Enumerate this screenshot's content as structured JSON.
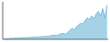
{
  "chart_data": {
    "type": "area",
    "x": [
      0,
      1,
      2,
      3,
      4,
      5,
      6,
      7,
      8,
      9,
      10,
      11,
      12,
      13,
      14,
      15,
      16,
      17,
      18,
      19,
      20,
      21,
      22,
      23,
      24,
      25,
      26,
      27,
      28,
      29,
      30,
      31,
      32,
      33,
      34,
      35,
      36,
      37,
      38,
      39,
      40,
      41,
      42,
      43,
      44,
      45,
      46,
      47
    ],
    "values": [
      5.0,
      5.5,
      5.2,
      5.8,
      5.4,
      6.0,
      5.7,
      6.2,
      5.9,
      6.5,
      6.1,
      6.8,
      6.4,
      7.0,
      6.7,
      7.3,
      7.0,
      7.6,
      7.2,
      7.9,
      7.5,
      8.2,
      8.8,
      9.0,
      8.5,
      9.5,
      10.5,
      11.0,
      10.0,
      12.0,
      14.0,
      16.5,
      15.0,
      18.0,
      20.0,
      22.0,
      21.0,
      25.0,
      28.0,
      26.0,
      30.0,
      27.0,
      32.0,
      35.0,
      30.0,
      38.0,
      28.0,
      42.0
    ],
    "color": "#5badd4",
    "xlim": [
      -0.5,
      47.5
    ],
    "ylim": [
      4.5,
      45.36
    ],
    "tick_labels": false
  }
}
